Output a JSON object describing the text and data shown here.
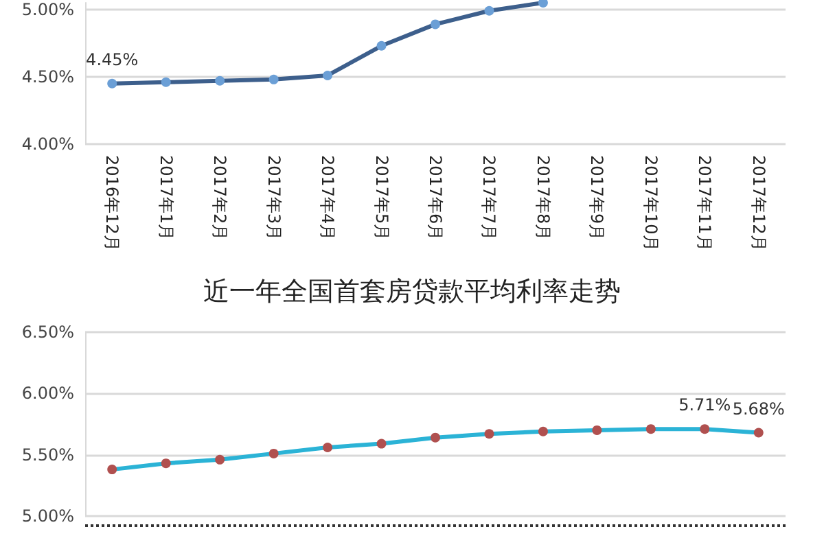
{
  "chart_data": [
    {
      "type": "line",
      "categories": [
        "2016年12月",
        "2017年1月",
        "2017年2月",
        "2017年3月",
        "2017年4月",
        "2017年5月",
        "2017年6月",
        "2017年7月",
        "2017年8月",
        "2017年9月",
        "2017年10月",
        "2017年11月",
        "2017年12月"
      ],
      "series": [
        {
          "color": "#3d5f8c",
          "colors": [
            "#6b9fd6",
            "#6b9fd6",
            "#6b9fd6",
            "#6b9fd6",
            "#6b9fd6",
            "#6b9fd6",
            "#6b9fd6",
            "#6b9fd6",
            "#6b9fd6",
            "#6b9fd6",
            "#6b9fd6",
            "#6b9fd6",
            "#6b9fd6"
          ],
          "values": [
            4.45,
            4.46,
            4.47,
            4.48,
            4.51,
            4.73,
            4.89,
            4.99,
            5.05,
            null,
            null,
            null,
            null
          ],
          "value_labels": [
            "4.45%",
            null,
            null,
            null,
            null,
            null,
            null,
            null,
            null,
            null,
            null,
            null,
            null
          ]
        }
      ],
      "marker": "circle",
      "ylim": [
        4.0,
        5.05
      ],
      "yticks": [
        {
          "value": 4.0,
          "label": "4.00%"
        },
        {
          "value": 4.5,
          "label": "4.50%"
        },
        {
          "value": 5.0,
          "label": "5.00%"
        }
      ],
      "grid": "y"
    },
    {
      "type": "line",
      "title": "近一年全国首套房贷款平均利率走势",
      "categories": [
        null,
        null,
        null,
        null,
        null,
        null,
        null,
        null,
        null,
        null,
        null,
        null,
        null
      ],
      "series": [
        {
          "color": "#2bb3d6",
          "colors": [
            "#b0504f",
            "#b0504f",
            "#b0504f",
            "#b0504f",
            "#b0504f",
            "#b0504f",
            "#b0504f",
            "#b0504f",
            "#b0504f",
            "#b0504f",
            "#b0504f",
            "#b0504f",
            "#b0504f"
          ],
          "values": [
            5.38,
            5.43,
            5.46,
            5.51,
            5.56,
            5.59,
            5.64,
            5.67,
            5.69,
            5.7,
            5.71,
            5.71,
            5.68
          ],
          "value_labels": [
            null,
            null,
            null,
            null,
            null,
            null,
            null,
            null,
            null,
            null,
            null,
            "5.71%",
            "5.68%"
          ]
        }
      ],
      "marker": "circle",
      "ylim": [
        5.0,
        6.5
      ],
      "yticks": [
        {
          "value": 5.0,
          "label": "5.00%"
        },
        {
          "value": 5.5,
          "label": "5.50%"
        },
        {
          "value": 6.0,
          "label": "6.00%"
        },
        {
          "value": 6.5,
          "label": "6.50%"
        }
      ],
      "grid": "y"
    }
  ]
}
